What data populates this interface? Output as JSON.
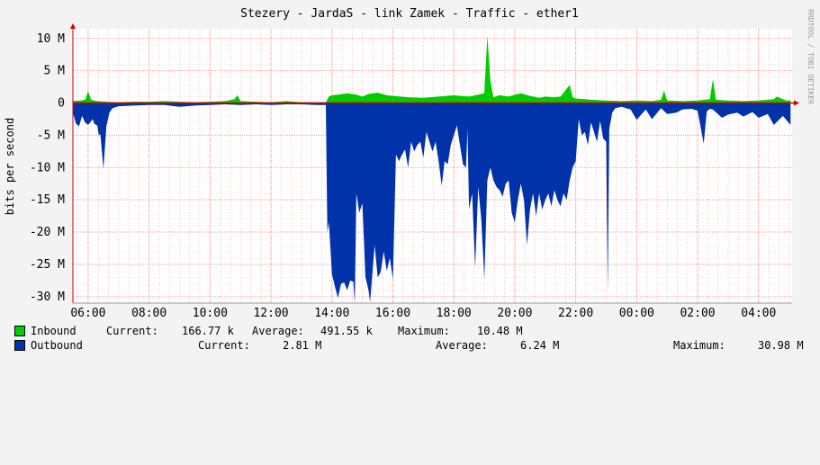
{
  "chart_data": {
    "type": "area",
    "title": "Stezery - JardaS - link Zamek - Traffic - ether1",
    "ylabel": "bits per second",
    "watermark": "RRDTOOL / TOBI OETIKER",
    "ylim": [
      -31000000,
      11500000
    ],
    "xlim": [
      5.5,
      29.1
    ],
    "grid": true,
    "y_ticks": [
      10000000,
      5000000,
      0,
      -5000000,
      -10000000,
      -15000000,
      -20000000,
      -25000000,
      -30000000
    ],
    "y_tick_labels": [
      "10 M",
      "5 M",
      "0",
      "-5 M",
      "-10 M",
      "-15 M",
      "-20 M",
      "-25 M",
      "-30 M"
    ],
    "x_ticks": [
      6,
      8,
      10,
      12,
      14,
      16,
      18,
      20,
      22,
      24,
      26,
      28
    ],
    "x_tick_labels": [
      "06:00",
      "08:00",
      "10:00",
      "12:00",
      "14:00",
      "16:00",
      "18:00",
      "20:00",
      "22:00",
      "00:00",
      "02:00",
      "04:00"
    ],
    "colors": {
      "inbound": "#00cc00",
      "outbound": "#0033aa",
      "grid": "#ff9999",
      "axis": "#cc0000",
      "plot_bg": "#ffffff"
    },
    "series": [
      {
        "name": "Inbound",
        "x": [
          5.5,
          5.75,
          5.9,
          6.0,
          6.1,
          6.2,
          6.3,
          6.6,
          7.0,
          7.5,
          8.0,
          8.5,
          9.0,
          9.5,
          10.0,
          10.5,
          10.8,
          10.9,
          11.0,
          11.5,
          12.0,
          12.5,
          13.0,
          13.5,
          13.8,
          13.9,
          14.0,
          14.2,
          14.5,
          14.8,
          15.0,
          15.2,
          15.5,
          15.8,
          16.0,
          16.5,
          17.0,
          17.5,
          18.0,
          18.5,
          18.8,
          19.0,
          19.1,
          19.2,
          19.3,
          19.5,
          19.8,
          20.0,
          20.2,
          20.5,
          20.8,
          21.0,
          21.3,
          21.5,
          21.8,
          21.9,
          22.0,
          22.3,
          22.5,
          23.0,
          23.5,
          24.0,
          24.5,
          24.8,
          24.9,
          25.0,
          25.5,
          26.0,
          26.4,
          26.5,
          26.6,
          27.0,
          27.5,
          28.0,
          28.3,
          28.5,
          28.6,
          28.9,
          29.05
        ],
        "values": [
          300000,
          400000,
          500000,
          1800000,
          500000,
          400000,
          300000,
          200000,
          100000,
          200000,
          200000,
          300000,
          200000,
          100000,
          200000,
          300000,
          600000,
          1200000,
          300000,
          200000,
          100000,
          300000,
          100000,
          100000,
          100000,
          1000000,
          1200000,
          1300000,
          1500000,
          1300000,
          1000000,
          1400000,
          1600000,
          1200000,
          1100000,
          900000,
          800000,
          1000000,
          1200000,
          1000000,
          1300000,
          1500000,
          10400000,
          3500000,
          900000,
          1200000,
          1000000,
          1300000,
          1500000,
          1100000,
          800000,
          1000000,
          900000,
          1000000,
          2800000,
          900000,
          700000,
          600000,
          500000,
          400000,
          300000,
          400000,
          300000,
          500000,
          1900000,
          400000,
          300000,
          400000,
          600000,
          3700000,
          500000,
          400000,
          300000,
          400000,
          500000,
          600000,
          1000000,
          400000,
          400000
        ]
      },
      {
        "name": "Outbound",
        "x": [
          5.5,
          5.6,
          5.7,
          5.8,
          5.9,
          6.0,
          6.1,
          6.15,
          6.2,
          6.3,
          6.35,
          6.4,
          6.5,
          6.6,
          6.7,
          6.8,
          7.0,
          7.5,
          8.0,
          8.5,
          9.0,
          9.5,
          10.0,
          10.5,
          11.0,
          11.5,
          12.0,
          12.5,
          13.0,
          13.5,
          13.8,
          13.85,
          13.9,
          14.0,
          14.1,
          14.2,
          14.3,
          14.4,
          14.5,
          14.6,
          14.7,
          14.75,
          14.8,
          14.9,
          15.0,
          15.1,
          15.2,
          15.25,
          15.3,
          15.4,
          15.5,
          15.6,
          15.7,
          15.8,
          15.9,
          16.0,
          16.1,
          16.2,
          16.3,
          16.4,
          16.5,
          16.6,
          16.7,
          16.8,
          16.9,
          17.0,
          17.1,
          17.2,
          17.3,
          17.4,
          17.5,
          17.6,
          17.7,
          17.8,
          17.9,
          18.0,
          18.1,
          18.2,
          18.3,
          18.4,
          18.45,
          18.5,
          18.6,
          18.7,
          18.8,
          18.9,
          19.0,
          19.1,
          19.2,
          19.3,
          19.4,
          19.5,
          19.6,
          19.7,
          19.8,
          19.9,
          20.0,
          20.1,
          20.2,
          20.3,
          20.4,
          20.5,
          20.6,
          20.7,
          20.8,
          20.9,
          21.0,
          21.1,
          21.2,
          21.3,
          21.4,
          21.5,
          21.6,
          21.7,
          21.8,
          21.9,
          22.0,
          22.1,
          22.2,
          22.3,
          22.4,
          22.5,
          22.6,
          22.7,
          22.8,
          22.9,
          23.0,
          23.05,
          23.1,
          23.2,
          23.3,
          23.5,
          23.8,
          24.0,
          24.3,
          24.5,
          24.8,
          25.0,
          25.3,
          25.5,
          25.8,
          26.0,
          26.2,
          26.3,
          26.4,
          26.5,
          26.8,
          27.0,
          27.3,
          27.5,
          27.8,
          28.0,
          28.3,
          28.5,
          28.8,
          29.05
        ],
        "values": [
          -1500000,
          -3200000,
          -3600000,
          -2000000,
          -3000000,
          -3400000,
          -2800000,
          -2500000,
          -3200000,
          -3500000,
          -5000000,
          -4800000,
          -10200000,
          -3600000,
          -1500000,
          -800000,
          -500000,
          -400000,
          -300000,
          -300000,
          -600000,
          -400000,
          -300000,
          -200000,
          -300000,
          -200000,
          -300000,
          -200000,
          -200000,
          -300000,
          -300000,
          -20000000,
          -18500000,
          -26500000,
          -28500000,
          -30200000,
          -28000000,
          -27800000,
          -29000000,
          -27500000,
          -27700000,
          -31000000,
          -14000000,
          -17000000,
          -15500000,
          -27000000,
          -29000000,
          -30800000,
          -28000000,
          -22000000,
          -27000000,
          -26200000,
          -23000000,
          -26000000,
          -24000000,
          -27300000,
          -8000000,
          -9000000,
          -8000000,
          -7200000,
          -10000000,
          -6000000,
          -7500000,
          -6500000,
          -6000000,
          -8500000,
          -4500000,
          -6000000,
          -7500000,
          -6000000,
          -9000000,
          -12800000,
          -9000000,
          -9500000,
          -6500000,
          -5000000,
          -3500000,
          -6500000,
          -9500000,
          -10000000,
          -4000000,
          -16500000,
          -14000000,
          -25500000,
          -13000000,
          -18000000,
          -27300000,
          -12000000,
          -10000000,
          -12000000,
          -13000000,
          -13500000,
          -14500000,
          -12500000,
          -12000000,
          -17000000,
          -18500000,
          -15000000,
          -12500000,
          -15000000,
          -22000000,
          -16500000,
          -14000000,
          -17500000,
          -14000000,
          -16500000,
          -15000000,
          -14000000,
          -16000000,
          -13500000,
          -15000000,
          -16000000,
          -14000000,
          -15000000,
          -12000000,
          -10000000,
          -9000000,
          -2500000,
          -5000000,
          -4500000,
          -6500000,
          -3000000,
          -4500000,
          -6000000,
          -2800000,
          -5500000,
          -6000000,
          -29200000,
          -4000000,
          -1500000,
          -800000,
          -600000,
          -1000000,
          -2600000,
          -1000000,
          -2500000,
          -800000,
          -1700000,
          -1500000,
          -1000000,
          -900000,
          -1200000,
          -6300000,
          -1300000,
          -900000,
          -1000000,
          -2300000,
          -1800000,
          -1500000,
          -2100000,
          -1400000,
          -2300000,
          -1700000,
          -3400000,
          -2000000,
          -3400000
        ]
      }
    ],
    "legend": [
      {
        "swatch": "#00cc00",
        "name": "Inbound",
        "current_label": "Current:",
        "current": "166.77 k",
        "average_label": "Average:",
        "average": "491.55 k",
        "maximum_label": "Maximum:",
        "maximum": "10.48 M"
      },
      {
        "swatch": "#0033aa",
        "name": "Outbound",
        "current_label": "Current:",
        "current": "2.81 M",
        "average_label": "Average:",
        "average": "6.24 M",
        "maximum_label": "Maximum:",
        "maximum": "30.98 M"
      }
    ]
  }
}
